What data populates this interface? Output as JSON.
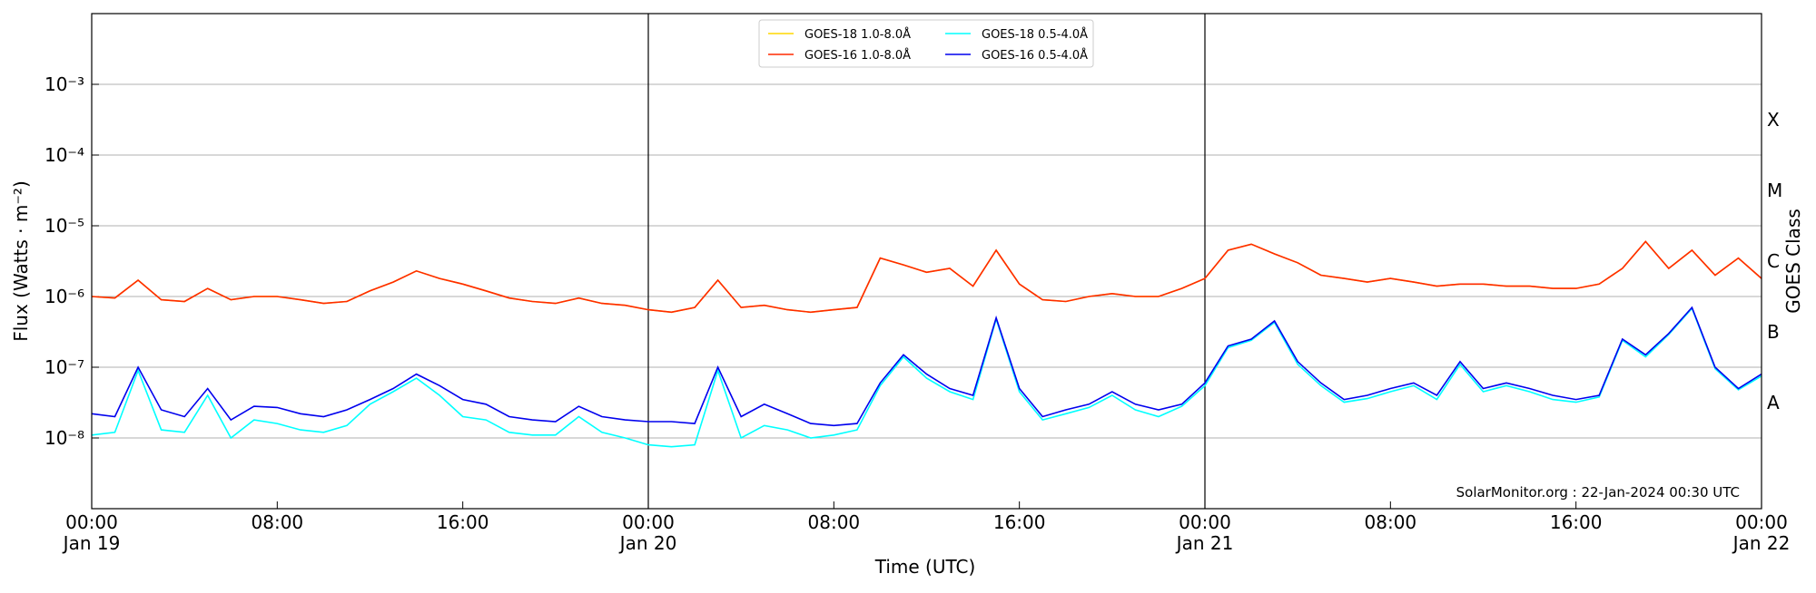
{
  "chart_data": {
    "type": "line",
    "log_y": true,
    "grid": true,
    "legend": "top",
    "y_label": "Flux (Watts · m⁻²)",
    "x_label": "Time (UTC)",
    "y2_label": "GOES Class",
    "annotation": "SolarMonitor.org : 22-Jan-2024 00:30 UTC",
    "xlim": [
      "2024-01-19T00:00",
      "2024-01-22T00:00"
    ],
    "xticks": [
      {
        "value": "2024-01-19T00:00",
        "label": "00:00\nJan 19"
      },
      {
        "value": "2024-01-19T08:00",
        "label": "08:00"
      },
      {
        "value": "2024-01-19T16:00",
        "label": "16:00"
      },
      {
        "value": "2024-01-20T00:00",
        "label": "00:00\nJan 20"
      },
      {
        "value": "2024-01-20T08:00",
        "label": "08:00"
      },
      {
        "value": "2024-01-20T16:00",
        "label": "16:00"
      },
      {
        "value": "2024-01-21T00:00",
        "label": "00:00\nJan 21"
      },
      {
        "value": "2024-01-21T08:00",
        "label": "08:00"
      },
      {
        "value": "2024-01-21T16:00",
        "label": "16:00"
      },
      {
        "value": "2024-01-22T00:00",
        "label": "00:00\nJan 22"
      }
    ],
    "ylim": [
      1e-09,
      0.01
    ],
    "yticks": [
      {
        "value": 1e-08,
        "label": "10⁻⁸"
      },
      {
        "value": 1e-07,
        "label": "10⁻⁷"
      },
      {
        "value": 1e-06,
        "label": "10⁻⁶"
      },
      {
        "value": 1e-05,
        "label": "10⁻⁵"
      },
      {
        "value": 0.0001,
        "label": "10⁻⁴"
      },
      {
        "value": 0.001,
        "label": "10⁻³"
      }
    ],
    "y2lim": [
      1e-09,
      0.01
    ],
    "y2ticks": [
      {
        "value": 3.16e-08,
        "label": "A"
      },
      {
        "value": 3.16e-07,
        "label": "B"
      },
      {
        "value": 3.16e-06,
        "label": "C"
      },
      {
        "value": 3.16e-05,
        "label": "M"
      },
      {
        "value": 0.000316,
        "label": "X"
      }
    ],
    "x": [
      "2024-01-19T00:00",
      "2024-01-19T01:00",
      "2024-01-19T02:00",
      "2024-01-19T03:00",
      "2024-01-19T04:00",
      "2024-01-19T05:00",
      "2024-01-19T06:00",
      "2024-01-19T07:00",
      "2024-01-19T08:00",
      "2024-01-19T09:00",
      "2024-01-19T10:00",
      "2024-01-19T11:00",
      "2024-01-19T12:00",
      "2024-01-19T13:00",
      "2024-01-19T14:00",
      "2024-01-19T15:00",
      "2024-01-19T16:00",
      "2024-01-19T17:00",
      "2024-01-19T18:00",
      "2024-01-19T19:00",
      "2024-01-19T20:00",
      "2024-01-19T21:00",
      "2024-01-19T22:00",
      "2024-01-19T23:00",
      "2024-01-20T00:00",
      "2024-01-20T01:00",
      "2024-01-20T02:00",
      "2024-01-20T03:00",
      "2024-01-20T04:00",
      "2024-01-20T05:00",
      "2024-01-20T06:00",
      "2024-01-20T07:00",
      "2024-01-20T08:00",
      "2024-01-20T09:00",
      "2024-01-20T10:00",
      "2024-01-20T11:00",
      "2024-01-20T12:00",
      "2024-01-20T13:00",
      "2024-01-20T14:00",
      "2024-01-20T15:00",
      "2024-01-20T16:00",
      "2024-01-20T17:00",
      "2024-01-20T18:00",
      "2024-01-20T19:00",
      "2024-01-20T20:00",
      "2024-01-20T21:00",
      "2024-01-20T22:00",
      "2024-01-20T23:00",
      "2024-01-21T00:00",
      "2024-01-21T01:00",
      "2024-01-21T02:00",
      "2024-01-21T03:00",
      "2024-01-21T04:00",
      "2024-01-21T05:00",
      "2024-01-21T06:00",
      "2024-01-21T07:00",
      "2024-01-21T08:00",
      "2024-01-21T09:00",
      "2024-01-21T10:00",
      "2024-01-21T11:00",
      "2024-01-21T12:00",
      "2024-01-21T13:00",
      "2024-01-21T14:00",
      "2024-01-21T15:00",
      "2024-01-21T16:00",
      "2024-01-21T17:00",
      "2024-01-21T18:00",
      "2024-01-21T19:00",
      "2024-01-21T20:00",
      "2024-01-21T21:00",
      "2024-01-21T22:00",
      "2024-01-21T23:00",
      "2024-01-22T00:00"
    ],
    "series": [
      {
        "name": "GOES-18 1.0-8.0Å",
        "color": "#ffd700",
        "values": [
          1e-06,
          9.5e-07,
          1.7e-06,
          9e-07,
          8.5e-07,
          1.3e-06,
          9e-07,
          1e-06,
          1e-06,
          9e-07,
          8e-07,
          8.5e-07,
          1.2e-06,
          1.6e-06,
          2.3e-06,
          1.8e-06,
          1.5e-06,
          1.2e-06,
          9.5e-07,
          8.5e-07,
          8e-07,
          9.5e-07,
          8e-07,
          7.5e-07,
          6.5e-07,
          6e-07,
          7e-07,
          1.7e-06,
          7e-07,
          7.5e-07,
          6.5e-07,
          6e-07,
          6.5e-07,
          7e-07,
          3.5e-06,
          2.8e-06,
          2.2e-06,
          2.5e-06,
          1.4e-06,
          4.5e-06,
          1.5e-06,
          9e-07,
          8.5e-07,
          1e-06,
          1.1e-06,
          1e-06,
          1e-06,
          1.3e-06,
          1.8e-06,
          4.5e-06,
          5.5e-06,
          4e-06,
          3e-06,
          2e-06,
          1.8e-06,
          1.6e-06,
          1.8e-06,
          1.6e-06,
          1.4e-06,
          1.5e-06,
          1.5e-06,
          1.4e-06,
          1.4e-06,
          1.3e-06,
          1.3e-06,
          1.5e-06,
          2.5e-06,
          6e-06,
          2.5e-06,
          4.5e-06,
          2e-06,
          3.5e-06,
          1.8e-06
        ]
      },
      {
        "name": "GOES-16 1.0-8.0Å",
        "color": "#ff2a00",
        "values": [
          1e-06,
          9.5e-07,
          1.7e-06,
          9e-07,
          8.5e-07,
          1.3e-06,
          9e-07,
          1e-06,
          1e-06,
          9e-07,
          8e-07,
          8.5e-07,
          1.2e-06,
          1.6e-06,
          2.3e-06,
          1.8e-06,
          1.5e-06,
          1.2e-06,
          9.5e-07,
          8.5e-07,
          8e-07,
          9.5e-07,
          8e-07,
          7.5e-07,
          6.5e-07,
          6e-07,
          7e-07,
          1.7e-06,
          7e-07,
          7.5e-07,
          6.5e-07,
          6e-07,
          6.5e-07,
          7e-07,
          3.5e-06,
          2.8e-06,
          2.2e-06,
          2.5e-06,
          1.4e-06,
          4.5e-06,
          1.5e-06,
          9e-07,
          8.5e-07,
          1e-06,
          1.1e-06,
          1e-06,
          1e-06,
          1.3e-06,
          1.8e-06,
          4.5e-06,
          5.5e-06,
          4e-06,
          3e-06,
          2e-06,
          1.8e-06,
          1.6e-06,
          1.8e-06,
          1.6e-06,
          1.4e-06,
          1.5e-06,
          1.5e-06,
          1.4e-06,
          1.4e-06,
          1.3e-06,
          1.3e-06,
          1.5e-06,
          2.5e-06,
          6e-06,
          2.5e-06,
          4.5e-06,
          2e-06,
          3.5e-06,
          1.8e-06
        ]
      },
      {
        "name": "GOES-18 0.5-4.0Å",
        "color": "#00ffff",
        "values": [
          1.1e-08,
          1.2e-08,
          9e-08,
          1.3e-08,
          1.2e-08,
          4e-08,
          1e-08,
          1.8e-08,
          1.6e-08,
          1.3e-08,
          1.2e-08,
          1.5e-08,
          3e-08,
          4.5e-08,
          7e-08,
          4e-08,
          2e-08,
          1.8e-08,
          1.2e-08,
          1.1e-08,
          1.1e-08,
          2e-08,
          1.2e-08,
          1e-08,
          8e-09,
          7.5e-09,
          8e-09,
          9e-08,
          1e-08,
          1.5e-08,
          1.3e-08,
          1e-08,
          1.1e-08,
          1.3e-08,
          5.5e-08,
          1.4e-07,
          7e-08,
          4.5e-08,
          3.5e-08,
          4.8e-07,
          4.5e-08,
          1.8e-08,
          2.2e-08,
          2.7e-08,
          4e-08,
          2.5e-08,
          2e-08,
          2.8e-08,
          5.5e-08,
          1.9e-07,
          2.4e-07,
          4.3e-07,
          1.1e-07,
          5.5e-08,
          3.2e-08,
          3.6e-08,
          4.5e-08,
          5.5e-08,
          3.5e-08,
          1.1e-07,
          4.5e-08,
          5.5e-08,
          4.5e-08,
          3.5e-08,
          3.2e-08,
          3.8e-08,
          2.4e-07,
          1.4e-07,
          2.9e-07,
          6.8e-07,
          9.5e-08,
          4.8e-08,
          7.5e-08
        ]
      },
      {
        "name": "GOES-16 0.5-4.0Å",
        "color": "#0000ee",
        "values": [
          2.2e-08,
          2e-08,
          1e-07,
          2.5e-08,
          2e-08,
          5e-08,
          1.8e-08,
          2.8e-08,
          2.7e-08,
          2.2e-08,
          2e-08,
          2.5e-08,
          3.5e-08,
          5e-08,
          8e-08,
          5.5e-08,
          3.5e-08,
          3e-08,
          2e-08,
          1.8e-08,
          1.7e-08,
          2.8e-08,
          2e-08,
          1.8e-08,
          1.7e-08,
          1.7e-08,
          1.6e-08,
          1e-07,
          2e-08,
          3e-08,
          2.2e-08,
          1.6e-08,
          1.5e-08,
          1.6e-08,
          6e-08,
          1.5e-07,
          8e-08,
          5e-08,
          4e-08,
          5e-07,
          5e-08,
          2e-08,
          2.5e-08,
          3e-08,
          4.5e-08,
          3e-08,
          2.5e-08,
          3e-08,
          6e-08,
          2e-07,
          2.5e-07,
          4.5e-07,
          1.2e-07,
          6e-08,
          3.5e-08,
          4e-08,
          5e-08,
          6e-08,
          4e-08,
          1.2e-07,
          5e-08,
          6e-08,
          5e-08,
          4e-08,
          3.5e-08,
          4e-08,
          2.5e-07,
          1.5e-07,
          3e-07,
          7e-07,
          1e-07,
          5e-08,
          8e-08
        ]
      }
    ]
  }
}
